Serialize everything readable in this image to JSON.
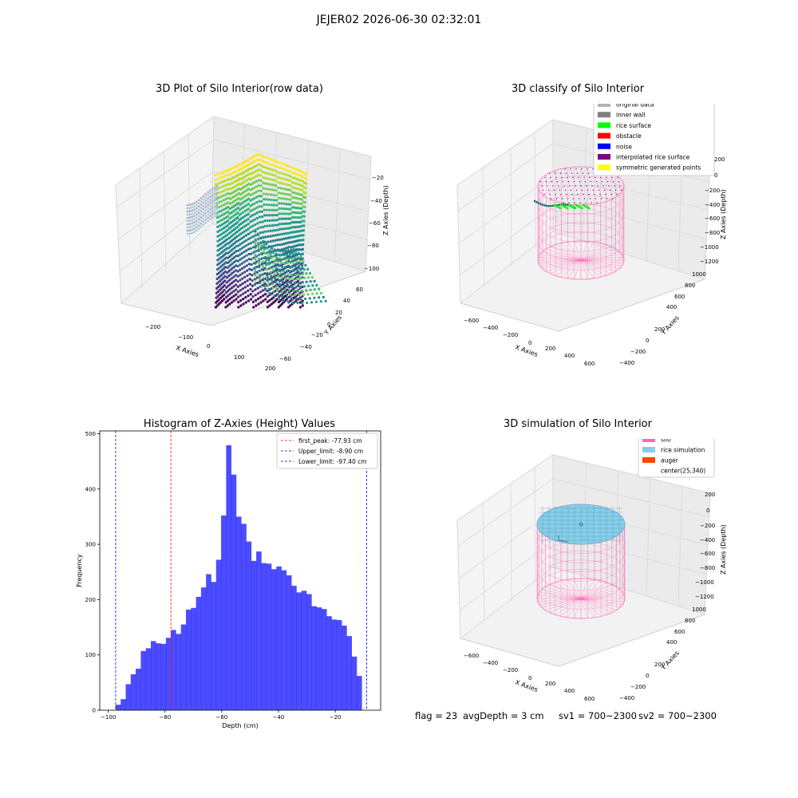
{
  "figure": {
    "suptitle": "JEJER02 2026-06-30 02:32:01"
  },
  "panels": {
    "raw": {
      "title": "3D Plot of Silo Interior(row data)",
      "xlabel": "X Axies",
      "ylabel": "Y Axies",
      "zlabel": "Z Axies (Depth)",
      "xticks": [
        "−200",
        "−100",
        "0",
        "100",
        "200"
      ],
      "yticks": [
        "−60",
        "−40",
        "−20",
        "0",
        "20",
        "40",
        "60"
      ],
      "zticks": [
        "−20",
        "−40",
        "−60",
        "−80",
        "−100"
      ]
    },
    "classify": {
      "title": "3D classify of Silo Interior",
      "xlabel": "X Axies",
      "ylabel": "Y Axies",
      "zlabel": "Z Axies (Depth)",
      "xticks": [
        "−600",
        "−400",
        "−200",
        "0",
        "200",
        "400",
        "600"
      ],
      "yticks": [
        "−400",
        "−200",
        "0",
        "200",
        "400",
        "600",
        "800",
        "1000"
      ],
      "zticks": [
        "200",
        "0",
        "−200",
        "−400",
        "−600",
        "−800",
        "−1000",
        "−1200"
      ],
      "legend": [
        {
          "label": "original data",
          "color": "#b3b3b3"
        },
        {
          "label": "inner wall",
          "color": "#808080"
        },
        {
          "label": "rice surface",
          "color": "#00ff00"
        },
        {
          "label": "obstacle",
          "color": "#ff0000"
        },
        {
          "label": "noise",
          "color": "#0000ff"
        },
        {
          "label": "interpolated rice surface",
          "color": "#800080"
        },
        {
          "label": "symmetric generated points",
          "color": "#ffff00"
        }
      ]
    },
    "simulation": {
      "title": "3D simulation of Silo Interior",
      "xlabel": "X Axies",
      "ylabel": "Y Axies",
      "zlabel": "Z Axies (Depth)",
      "xticks": [
        "−600",
        "−400",
        "−200",
        "0",
        "200",
        "400",
        "600"
      ],
      "yticks": [
        "−400",
        "−200",
        "0",
        "200",
        "400",
        "600",
        "800",
        "1000"
      ],
      "zticks": [
        "200",
        "0",
        "−200",
        "−400",
        "−600",
        "−800",
        "−1000",
        "−1200"
      ],
      "legend": [
        {
          "label": "silo",
          "color": "#ff69b4"
        },
        {
          "label": "rice simulation",
          "color": "#87ceeb"
        },
        {
          "label": "auger",
          "color": "#ff4500"
        },
        {
          "label": "center(25,340)",
          "color": ""
        }
      ]
    }
  },
  "footer": {
    "flag": "flag = 23",
    "avg": "avgDepth = 3 cm",
    "sv1": "sv1 = 700~2300",
    "sv2": "sv2 = 700~2300"
  },
  "chart_data": {
    "type": "bar",
    "title": "Histogram of Z-Axies (Height) Values",
    "xlabel": "Depth (cm)",
    "ylabel": "Frequency",
    "xlim": [
      -103,
      -4
    ],
    "ylim": [
      0,
      505
    ],
    "xticks": [
      -100,
      -80,
      -60,
      -40,
      -20
    ],
    "yticks": [
      0,
      100,
      200,
      300,
      400,
      500
    ],
    "bin_start": -97.4,
    "bin_width": 1.77,
    "values": [
      10,
      20,
      47,
      65,
      75,
      107,
      112,
      125,
      121,
      120,
      131,
      145,
      138,
      155,
      182,
      185,
      205,
      222,
      246,
      232,
      272,
      352,
      479,
      426,
      350,
      337,
      305,
      270,
      287,
      266,
      265,
      255,
      260,
      253,
      244,
      225,
      213,
      216,
      210,
      188,
      186,
      183,
      170,
      164,
      163,
      153,
      134,
      97,
      62
    ],
    "color": "#0000ff",
    "lines": [
      {
        "label": "first_peak: -77.93 cm",
        "x": -77.93,
        "color": "#ff0000"
      },
      {
        "label": "Upper_limit: -8.90 cm",
        "x": -8.9,
        "color": "#0000ff"
      },
      {
        "label": "Lower_limit: -97.40 cm",
        "x": -97.4,
        "color": "#0000ff"
      }
    ]
  }
}
